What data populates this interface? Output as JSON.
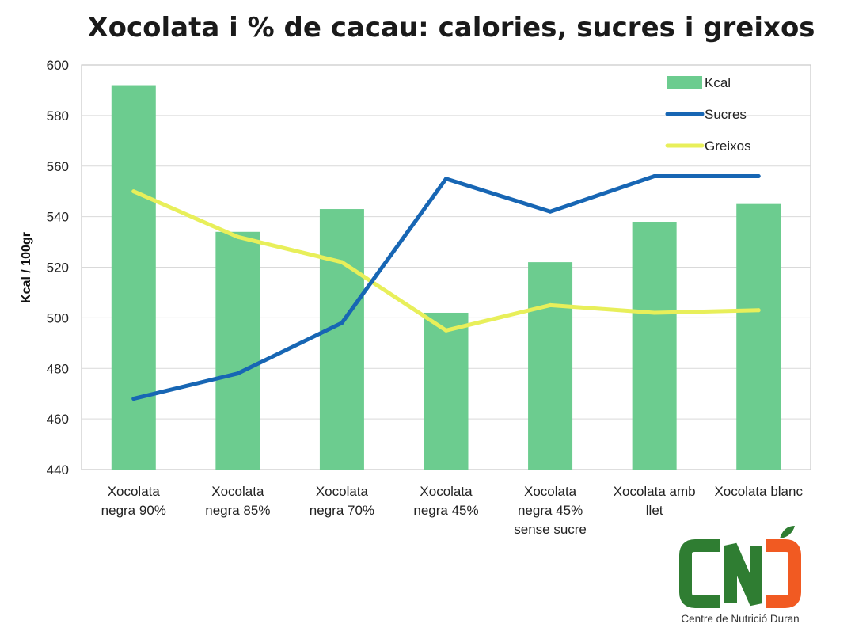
{
  "chart_data": {
    "type": "bar",
    "title": "Xocolata i % de cacau: calories, sucres i greixos",
    "xlabel": "",
    "ylabel": "Kcal / 100gr",
    "ylim": [
      440,
      600
    ],
    "yticks": [
      440,
      460,
      480,
      500,
      520,
      540,
      560,
      580,
      600
    ],
    "grid": true,
    "legend_position": "top-right",
    "categories": [
      [
        "Xocolata",
        "negra 90%"
      ],
      [
        "Xocolata",
        "negra 85%"
      ],
      [
        "Xocolata",
        "negra 70%"
      ],
      [
        "Xocolata",
        "negra 45%"
      ],
      [
        "Xocolata",
        "negra 45%",
        "sense sucre"
      ],
      [
        "Xocolata amb",
        "llet"
      ],
      [
        "Xocolata blanc"
      ]
    ],
    "series": [
      {
        "name": "Kcal",
        "kind": "bar",
        "color": "#6ccc8f",
        "values": [
          592,
          534,
          543,
          502,
          522,
          538,
          545
        ]
      },
      {
        "name": "Sucres",
        "kind": "line",
        "color": "#1766b4",
        "values": [
          468,
          478,
          498,
          555,
          542,
          556,
          556
        ]
      },
      {
        "name": "Greixos",
        "kind": "line",
        "color": "#e8ef5a",
        "values": [
          550,
          532,
          522,
          495,
          505,
          502,
          503
        ]
      }
    ]
  },
  "logo": {
    "letters": [
      "C",
      "N",
      "D"
    ],
    "subtitle": "Centre de Nutrició Duran",
    "green": "#2f7d32",
    "orange": "#f15a22"
  }
}
